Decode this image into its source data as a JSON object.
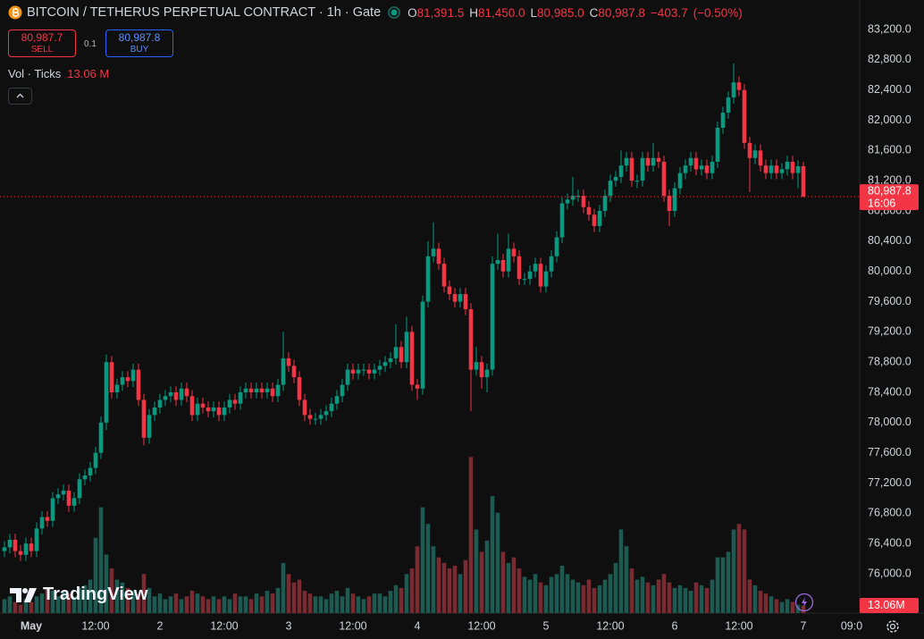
{
  "chart_data": {
    "type": "candlestick",
    "title": "BITCOIN / TETHERUS PERPETUAL CONTRACT · 1h · Gate",
    "ohlc_legend": [
      {
        "key": "O",
        "value": 81391.5,
        "label": "81,391.5"
      },
      {
        "key": "H",
        "value": 81450,
        "label": "81,450.0"
      },
      {
        "key": "L",
        "value": 80985,
        "label": "80,985.0"
      },
      {
        "key": "C",
        "value": 80987.8,
        "label": "80,987.8"
      }
    ],
    "change": {
      "value": -403.7,
      "label": "−403.7"
    },
    "change_percent": {
      "value": -0.5,
      "label": "(−0.50%)"
    },
    "sell": {
      "value": 80987.7,
      "label": "80,987.7",
      "text": "SELL"
    },
    "spread": 0.1,
    "buy": {
      "value": 80987.8,
      "label": "80,987.8",
      "text": "BUY"
    },
    "volume_legend": {
      "title": "Vol · Ticks",
      "value": 13.06,
      "label": "13.06 M"
    },
    "last_price": {
      "value": 80987.8,
      "label": "80,987.8",
      "countdown": "16:06"
    },
    "last_volume": {
      "value": 13.06,
      "label": "13.06M"
    },
    "watermark": "TradingView",
    "up_color": "#089981",
    "down_color": "#f23645",
    "volume_up_color": "#1d5a51",
    "volume_down_color": "#7a2b31",
    "grid": false,
    "xlim": [
      -5.83,
      154.5
    ],
    "ylim": [
      75480,
      83590
    ],
    "y2lim": [
      0,
      1100
    ],
    "xticks": [
      {
        "value": 0,
        "label": "May"
      },
      {
        "value": 12,
        "label": "12:00"
      },
      {
        "value": 24,
        "label": "2"
      },
      {
        "value": 36,
        "label": "12:00"
      },
      {
        "value": 48,
        "label": "3"
      },
      {
        "value": 60,
        "label": "12:00"
      },
      {
        "value": 72,
        "label": "4"
      },
      {
        "value": 84,
        "label": "12:00"
      },
      {
        "value": 96,
        "label": "5"
      },
      {
        "value": 108,
        "label": "12:00"
      },
      {
        "value": 120,
        "label": "6"
      },
      {
        "value": 132,
        "label": "12:00"
      },
      {
        "value": 144,
        "label": "7"
      },
      {
        "value": 153,
        "label": "09:0"
      }
    ],
    "yticks": [
      {
        "value": 76000,
        "label": "76,000.0"
      },
      {
        "value": 76400,
        "label": "76,400.0"
      },
      {
        "value": 76800,
        "label": "76,800.0"
      },
      {
        "value": 77200,
        "label": "77,200.0"
      },
      {
        "value": 77600,
        "label": "77,600.0"
      },
      {
        "value": 78000,
        "label": "78,000.0"
      },
      {
        "value": 78400,
        "label": "78,400.0"
      },
      {
        "value": 78800,
        "label": "78,800.0"
      },
      {
        "value": 79200,
        "label": "79,200.0"
      },
      {
        "value": 79600,
        "label": "79,600.0"
      },
      {
        "value": 80000,
        "label": "80,000.0"
      },
      {
        "value": 80400,
        "label": "80,400.0"
      },
      {
        "value": 80800,
        "label": "80,800.0"
      },
      {
        "value": 81200,
        "label": "81,200.0"
      },
      {
        "value": 81600,
        "label": "81,600.0"
      },
      {
        "value": 82000,
        "label": "82,000.0"
      },
      {
        "value": 82400,
        "label": "82,400.0"
      },
      {
        "value": 82800,
        "label": "82,800.0"
      },
      {
        "value": 83200,
        "label": "83,200.0"
      }
    ],
    "x": [
      -5,
      -4,
      -3,
      -2,
      -1,
      0,
      1,
      2,
      3,
      4,
      5,
      6,
      7,
      8,
      9,
      10,
      11,
      12,
      13,
      14,
      15,
      16,
      17,
      18,
      19,
      20,
      21,
      22,
      23,
      24,
      25,
      26,
      27,
      28,
      29,
      30,
      31,
      32,
      33,
      34,
      35,
      36,
      37,
      38,
      39,
      40,
      41,
      42,
      43,
      44,
      45,
      46,
      47,
      48,
      49,
      50,
      51,
      52,
      53,
      54,
      55,
      56,
      57,
      58,
      59,
      60,
      61,
      62,
      63,
      64,
      65,
      66,
      67,
      68,
      69,
      70,
      71,
      72,
      73,
      74,
      75,
      76,
      77,
      78,
      79,
      80,
      81,
      82,
      83,
      84,
      85,
      86,
      87,
      88,
      89,
      90,
      91,
      92,
      93,
      94,
      95,
      96,
      97,
      98,
      99,
      100,
      101,
      102,
      103,
      104,
      105,
      106,
      107,
      108,
      109,
      110,
      111,
      112,
      113,
      114,
      115,
      116,
      117,
      118,
      119,
      120,
      121,
      122,
      123,
      124,
      125,
      126,
      127,
      128,
      129,
      130,
      131,
      132,
      133,
      134,
      135,
      136,
      137,
      138,
      139,
      140,
      141,
      142,
      143,
      144
    ],
    "open": [
      76300,
      76350,
      76450,
      76300,
      76250,
      76400,
      76300,
      76600,
      76750,
      76700,
      77000,
      77050,
      77100,
      76900,
      77000,
      77250,
      77300,
      77400,
      77600,
      78000,
      78800,
      78400,
      78500,
      78600,
      78550,
      78700,
      78300,
      77800,
      78100,
      78200,
      78300,
      78350,
      78400,
      78300,
      78450,
      78350,
      78100,
      78250,
      78200,
      78150,
      78200,
      78100,
      78200,
      78300,
      78250,
      78400,
      78450,
      78400,
      78450,
      78400,
      78450,
      78350,
      78500,
      78850,
      78750,
      78600,
      78300,
      78100,
      78050,
      78050,
      78100,
      78150,
      78250,
      78350,
      78500,
      78700,
      78650,
      78700,
      78700,
      78650,
      78700,
      78750,
      78800,
      78850,
      79000,
      78800,
      79200,
      78500,
      78450,
      79600,
      80200,
      80300,
      80100,
      79800,
      79700,
      79600,
      79700,
      79500,
      78700,
      78800,
      78600,
      78700,
      80100,
      80150,
      80000,
      80300,
      80200,
      79900,
      79900,
      80000,
      80100,
      79800,
      80000,
      80200,
      80450,
      80900,
      80950,
      81000,
      81000,
      80850,
      80750,
      80600,
      80800,
      81000,
      81200,
      81250,
      81400,
      81500,
      81200,
      81200,
      81500,
      81400,
      81500,
      81450,
      81000,
      80800,
      81100,
      81300,
      81400,
      81500,
      81350,
      81400,
      81300,
      81450,
      81900,
      82100,
      82300,
      82500,
      82400,
      81700,
      81500,
      81600,
      81400,
      81300,
      81400,
      81300,
      81350,
      81450,
      81300,
      81391.5
    ],
    "high": [
      76430,
      76530,
      76530,
      76380,
      76480,
      76480,
      76680,
      76830,
      76830,
      77080,
      77130,
      77180,
      77180,
      77080,
      77330,
      77380,
      77480,
      77680,
      78080,
      78900,
      78880,
      78580,
      78680,
      78680,
      78780,
      78780,
      78380,
      78180,
      78280,
      78380,
      78430,
      78480,
      78480,
      78530,
      78530,
      78430,
      78330,
      78330,
      78280,
      78280,
      78280,
      78280,
      78380,
      78380,
      78480,
      78530,
      78530,
      78530,
      78530,
      78530,
      78530,
      78580,
      79200,
      78930,
      78830,
      78680,
      78380,
      78180,
      78130,
      78180,
      78230,
      78330,
      78430,
      78580,
      78780,
      78780,
      78780,
      78780,
      78780,
      78780,
      78830,
      78880,
      78930,
      79300,
      79080,
      79400,
      79280,
      78580,
      79680,
      80400,
      80650,
      80380,
      80180,
      79880,
      79780,
      79780,
      79780,
      79580,
      79000,
      78880,
      78780,
      80200,
      80500,
      80230,
      80500,
      80380,
      80280,
      79980,
      80080,
      80180,
      80180,
      80080,
      80280,
      80530,
      80980,
      81030,
      81250,
      81080,
      81080,
      80930,
      80830,
      80880,
      81080,
      81280,
      81330,
      81600,
      81580,
      81580,
      81280,
      81580,
      81580,
      81700,
      81580,
      81530,
      81080,
      81180,
      81380,
      81480,
      81580,
      81580,
      81480,
      81480,
      81530,
      81980,
      82180,
      82380,
      82750,
      82580,
      82480,
      81780,
      81680,
      81680,
      81480,
      81480,
      81480,
      81430,
      81530,
      81530,
      81470,
      81450
    ],
    "low": [
      76220,
      76270,
      76220,
      76170,
      76170,
      76220,
      76220,
      76520,
      76620,
      76620,
      76920,
      76970,
      76820,
      76820,
      76920,
      77170,
      77220,
      77320,
      77520,
      77900,
      78320,
      78320,
      78420,
      78470,
      78470,
      78220,
      77700,
      77720,
      78020,
      78120,
      78220,
      78270,
      78220,
      78220,
      78270,
      78020,
      78020,
      78120,
      78070,
      78070,
      78020,
      78020,
      78120,
      78170,
      78170,
      78320,
      78320,
      78320,
      78320,
      78320,
      78270,
      78270,
      78420,
      78670,
      78520,
      78220,
      78020,
      77970,
      77970,
      77970,
      78020,
      78070,
      78170,
      78270,
      78420,
      78570,
      78570,
      78620,
      78570,
      78570,
      78620,
      78670,
      78720,
      78770,
      78720,
      78720,
      78420,
      78300,
      78370,
      79520,
      80120,
      80020,
      79720,
      79620,
      79520,
      79520,
      79420,
      78150,
      78620,
      78450,
      78400,
      78620,
      80020,
      79920,
      79920,
      80120,
      79820,
      79820,
      79820,
      79920,
      79720,
      79720,
      79920,
      80120,
      80370,
      80820,
      80870,
      80920,
      80770,
      80670,
      80520,
      80520,
      80720,
      80920,
      81120,
      81170,
      81320,
      81120,
      81100,
      81120,
      81320,
      81320,
      81370,
      80920,
      80600,
      80720,
      81020,
      81220,
      81320,
      81270,
      81270,
      81220,
      81220,
      81370,
      81820,
      82020,
      82220,
      82320,
      81620,
      81050,
      81420,
      81320,
      81220,
      81220,
      81220,
      81220,
      81270,
      81220,
      81100,
      80985
    ],
    "close": [
      76350,
      76450,
      76300,
      76250,
      76400,
      76300,
      76600,
      76750,
      76700,
      77000,
      77050,
      77100,
      76900,
      77000,
      77250,
      77300,
      77400,
      77600,
      78000,
      78800,
      78400,
      78500,
      78600,
      78550,
      78700,
      78300,
      77800,
      78100,
      78200,
      78300,
      78350,
      78400,
      78300,
      78450,
      78350,
      78100,
      78250,
      78200,
      78150,
      78200,
      78100,
      78200,
      78300,
      78250,
      78400,
      78450,
      78400,
      78450,
      78400,
      78450,
      78350,
      78500,
      78850,
      78750,
      78600,
      78300,
      78100,
      78050,
      78050,
      78100,
      78150,
      78250,
      78350,
      78500,
      78700,
      78650,
      78700,
      78700,
      78650,
      78700,
      78750,
      78800,
      78850,
      79000,
      78800,
      79200,
      78500,
      78450,
      79600,
      80200,
      80300,
      80100,
      79800,
      79700,
      79600,
      79700,
      79500,
      78700,
      78800,
      78600,
      78700,
      80100,
      80150,
      80000,
      80300,
      80200,
      79900,
      79900,
      80000,
      80100,
      79800,
      80000,
      80200,
      80450,
      80900,
      80950,
      81000,
      81000,
      80850,
      80750,
      80600,
      80800,
      81000,
      81200,
      81250,
      81400,
      81500,
      81200,
      81200,
      81500,
      81400,
      81500,
      81450,
      81000,
      80800,
      81100,
      81300,
      81400,
      81500,
      81350,
      81400,
      81300,
      81450,
      81900,
      82100,
      82300,
      82500,
      82400,
      81700,
      81500,
      81600,
      81400,
      81300,
      81400,
      81300,
      81350,
      81450,
      81300,
      81391.5,
      80987.8
    ],
    "volume": [
      25,
      30,
      20,
      15,
      25,
      20,
      30,
      35,
      45,
      40,
      30,
      40,
      35,
      30,
      45,
      50,
      60,
      135,
      190,
      105,
      80,
      60,
      55,
      45,
      40,
      35,
      70,
      45,
      30,
      35,
      25,
      30,
      35,
      25,
      30,
      40,
      35,
      30,
      25,
      30,
      25,
      30,
      25,
      35,
      30,
      30,
      25,
      35,
      30,
      40,
      35,
      45,
      90,
      70,
      55,
      60,
      40,
      35,
      30,
      30,
      25,
      35,
      40,
      30,
      45,
      35,
      30,
      25,
      30,
      35,
      35,
      30,
      40,
      50,
      45,
      70,
      80,
      120,
      190,
      160,
      120,
      100,
      90,
      80,
      85,
      70,
      95,
      280,
      150,
      110,
      130,
      210,
      180,
      110,
      90,
      100,
      80,
      65,
      60,
      70,
      55,
      50,
      65,
      70,
      85,
      70,
      60,
      55,
      50,
      60,
      45,
      50,
      60,
      70,
      90,
      150,
      120,
      80,
      60,
      65,
      55,
      50,
      60,
      70,
      55,
      45,
      50,
      45,
      40,
      55,
      50,
      45,
      60,
      100,
      100,
      110,
      150,
      160,
      150,
      60,
      50,
      40,
      35,
      30,
      25,
      20,
      25,
      20,
      15,
      13.06
    ]
  }
}
